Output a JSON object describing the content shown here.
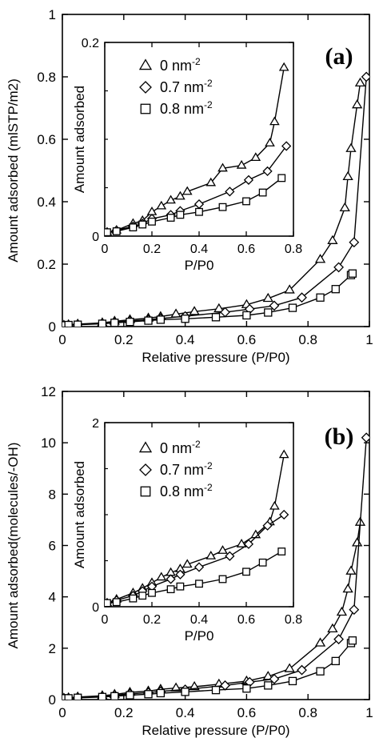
{
  "chart_data": [
    {
      "type": "line",
      "panel_label": "(a)",
      "xlabel": "Relative pressure (P/P0)",
      "ylabel": "Amount adsorbed (mlSTP/m2)",
      "xlim": [
        0,
        1
      ],
      "ylim": [
        0,
        1
      ],
      "xticks": [
        "0",
        "0.2",
        "0.4",
        "0.6",
        "0.8",
        "1"
      ],
      "yticks": [
        "0",
        "0.2",
        "0.4",
        "0.6",
        "0.8",
        "1"
      ],
      "series": [
        {
          "name": "0 nm-2",
          "marker": "triangle",
          "points": [
            [
              0.005,
              0.004
            ],
            [
              0.02,
              0.006
            ],
            [
              0.05,
              0.008
            ],
            [
              0.13,
              0.012
            ],
            [
              0.17,
              0.017
            ],
            [
              0.22,
              0.022
            ],
            [
              0.28,
              0.027
            ],
            [
              0.32,
              0.032
            ],
            [
              0.37,
              0.04
            ],
            [
              0.43,
              0.048
            ],
            [
              0.51,
              0.057
            ],
            [
              0.6,
              0.07
            ],
            [
              0.67,
              0.09
            ],
            [
              0.74,
              0.117
            ],
            [
              0.84,
              0.215
            ],
            [
              0.88,
              0.275
            ],
            [
              0.92,
              0.38
            ],
            [
              0.93,
              0.48
            ],
            [
              0.94,
              0.57
            ],
            [
              0.96,
              0.71
            ],
            [
              0.97,
              0.78
            ]
          ]
        },
        {
          "name": "0.7 nm-2",
          "marker": "diamond",
          "points": [
            [
              0.005,
              0.004
            ],
            [
              0.02,
              0.005
            ],
            [
              0.05,
              0.007
            ],
            [
              0.13,
              0.01
            ],
            [
              0.17,
              0.014
            ],
            [
              0.22,
              0.018
            ],
            [
              0.28,
              0.022
            ],
            [
              0.32,
              0.026
            ],
            [
              0.4,
              0.033
            ],
            [
              0.53,
              0.046
            ],
            [
              0.61,
              0.056
            ],
            [
              0.69,
              0.067
            ],
            [
              0.78,
              0.093
            ],
            [
              0.9,
              0.19
            ],
            [
              0.95,
              0.27
            ],
            [
              0.99,
              0.8
            ]
          ]
        },
        {
          "name": "0.8 nm-2",
          "marker": "square",
          "points": [
            [
              0.005,
              0.004
            ],
            [
              0.02,
              0.005
            ],
            [
              0.05,
              0.006
            ],
            [
              0.13,
              0.009
            ],
            [
              0.17,
              0.012
            ],
            [
              0.22,
              0.015
            ],
            [
              0.28,
              0.019
            ],
            [
              0.32,
              0.022
            ],
            [
              0.4,
              0.025
            ],
            [
              0.5,
              0.03
            ],
            [
              0.6,
              0.036
            ],
            [
              0.67,
              0.045
            ],
            [
              0.75,
              0.06
            ],
            [
              0.84,
              0.093
            ],
            [
              0.89,
              0.12
            ],
            [
              0.94,
              0.165
            ],
            [
              0.945,
              0.17
            ]
          ]
        }
      ],
      "inset": {
        "xlabel": "P/P0",
        "ylabel": "Amount adsorbed",
        "xlim": [
          0,
          0.8
        ],
        "ylim": [
          0,
          0.2
        ],
        "xticks": [
          "0",
          "0.2",
          "0.4",
          "0.6",
          "0.8"
        ],
        "yticks": [
          "0",
          "0.2"
        ],
        "legend": [
          "0 nm-2",
          "0.7 nm-2",
          "0.8 nm-2"
        ],
        "series": [
          {
            "name": "0 nm-2",
            "marker": "triangle",
            "points": [
              [
                0,
                0.003
              ],
              [
                0.01,
                0.004
              ],
              [
                0.05,
                0.006
              ],
              [
                0.12,
                0.013
              ],
              [
                0.16,
                0.016
              ],
              [
                0.2,
                0.025
              ],
              [
                0.24,
                0.031
              ],
              [
                0.28,
                0.037
              ],
              [
                0.32,
                0.041
              ],
              [
                0.35,
                0.046
              ],
              [
                0.45,
                0.055
              ],
              [
                0.5,
                0.07
              ],
              [
                0.58,
                0.073
              ],
              [
                0.64,
                0.081
              ],
              [
                0.7,
                0.096
              ],
              [
                0.72,
                0.118
              ],
              [
                0.76,
                0.174
              ]
            ]
          },
          {
            "name": "0.7 nm-2",
            "marker": "diamond",
            "points": [
              [
                0,
                0.003
              ],
              [
                0.01,
                0.004
              ],
              [
                0.05,
                0.006
              ],
              [
                0.12,
                0.01
              ],
              [
                0.16,
                0.013
              ],
              [
                0.2,
                0.018
              ],
              [
                0.28,
                0.022
              ],
              [
                0.32,
                0.026
              ],
              [
                0.4,
                0.033
              ],
              [
                0.53,
                0.046
              ],
              [
                0.61,
                0.058
              ],
              [
                0.69,
                0.067
              ],
              [
                0.77,
                0.093
              ]
            ]
          },
          {
            "name": "0.8 nm-2",
            "marker": "square",
            "points": [
              [
                0,
                0.003
              ],
              [
                0.01,
                0.004
              ],
              [
                0.05,
                0.005
              ],
              [
                0.12,
                0.009
              ],
              [
                0.16,
                0.012
              ],
              [
                0.2,
                0.015
              ],
              [
                0.28,
                0.019
              ],
              [
                0.32,
                0.022
              ],
              [
                0.4,
                0.025
              ],
              [
                0.5,
                0.03
              ],
              [
                0.6,
                0.036
              ],
              [
                0.67,
                0.045
              ],
              [
                0.75,
                0.06
              ]
            ]
          }
        ]
      }
    },
    {
      "type": "line",
      "panel_label": "(b)",
      "xlabel": "Relative pressure (P/P0)",
      "ylabel": "Amount adsorbed(molecules/-OH)",
      "xlim": [
        0,
        1
      ],
      "ylim": [
        0,
        12
      ],
      "xticks": [
        "0",
        "0.2",
        "0.4",
        "0.6",
        "0.8",
        "1"
      ],
      "yticks": [
        "0",
        "2",
        "4",
        "6",
        "8",
        "10",
        "12"
      ],
      "series": [
        {
          "name": "0 nm-2",
          "marker": "triangle",
          "points": [
            [
              0.005,
              0.05
            ],
            [
              0.02,
              0.07
            ],
            [
              0.05,
              0.1
            ],
            [
              0.13,
              0.15
            ],
            [
              0.17,
              0.2
            ],
            [
              0.22,
              0.28
            ],
            [
              0.28,
              0.33
            ],
            [
              0.32,
              0.4
            ],
            [
              0.37,
              0.45
            ],
            [
              0.43,
              0.5
            ],
            [
              0.51,
              0.6
            ],
            [
              0.6,
              0.72
            ],
            [
              0.67,
              0.9
            ],
            [
              0.74,
              1.2
            ],
            [
              0.84,
              2.2
            ],
            [
              0.88,
              2.75
            ],
            [
              0.91,
              3.4
            ],
            [
              0.93,
              4.3
            ],
            [
              0.94,
              5.0
            ],
            [
              0.96,
              6.1
            ],
            [
              0.97,
              6.9
            ]
          ]
        },
        {
          "name": "0.7 nm-2",
          "marker": "diamond",
          "points": [
            [
              0.005,
              0.05
            ],
            [
              0.02,
              0.06
            ],
            [
              0.05,
              0.08
            ],
            [
              0.13,
              0.12
            ],
            [
              0.17,
              0.17
            ],
            [
              0.22,
              0.22
            ],
            [
              0.28,
              0.27
            ],
            [
              0.32,
              0.32
            ],
            [
              0.4,
              0.39
            ],
            [
              0.53,
              0.55
            ],
            [
              0.61,
              0.68
            ],
            [
              0.69,
              0.8
            ],
            [
              0.78,
              1.15
            ],
            [
              0.9,
              2.35
            ],
            [
              0.95,
              3.5
            ],
            [
              0.99,
              10.2
            ]
          ]
        },
        {
          "name": "0.8 nm-2",
          "marker": "square",
          "points": [
            [
              0.005,
              0.05
            ],
            [
              0.02,
              0.05
            ],
            [
              0.05,
              0.07
            ],
            [
              0.13,
              0.1
            ],
            [
              0.17,
              0.13
            ],
            [
              0.22,
              0.17
            ],
            [
              0.28,
              0.21
            ],
            [
              0.32,
              0.25
            ],
            [
              0.4,
              0.3
            ],
            [
              0.5,
              0.37
            ],
            [
              0.6,
              0.43
            ],
            [
              0.67,
              0.55
            ],
            [
              0.75,
              0.72
            ],
            [
              0.84,
              1.1
            ],
            [
              0.89,
              1.5
            ],
            [
              0.94,
              2.2
            ],
            [
              0.945,
              2.3
            ]
          ]
        }
      ],
      "inset": {
        "xlabel": "P/P0",
        "ylabel": "Amount adsorbed",
        "xlim": [
          0,
          0.8
        ],
        "ylim": [
          0,
          2
        ],
        "xticks": [
          "0",
          "0.2",
          "0.4",
          "0.6",
          "0.8"
        ],
        "yticks": [
          "0",
          "2"
        ],
        "legend": [
          "0 nm-2",
          "0.7 nm-2",
          "0.8 nm-2"
        ],
        "series": [
          {
            "name": "0 nm-2",
            "marker": "triangle",
            "points": [
              [
                0,
                0.03
              ],
              [
                0.01,
                0.04
              ],
              [
                0.05,
                0.08
              ],
              [
                0.12,
                0.15
              ],
              [
                0.16,
                0.2
              ],
              [
                0.2,
                0.26
              ],
              [
                0.24,
                0.32
              ],
              [
                0.28,
                0.37
              ],
              [
                0.32,
                0.41
              ],
              [
                0.35,
                0.46
              ],
              [
                0.45,
                0.55
              ],
              [
                0.5,
                0.61
              ],
              [
                0.58,
                0.68
              ],
              [
                0.64,
                0.78
              ],
              [
                0.7,
                0.92
              ],
              [
                0.72,
                1.09
              ],
              [
                0.76,
                1.65
              ]
            ]
          },
          {
            "name": "0.7 nm-2",
            "marker": "diamond",
            "points": [
              [
                0,
                0.03
              ],
              [
                0.01,
                0.04
              ],
              [
                0.05,
                0.07
              ],
              [
                0.12,
                0.12
              ],
              [
                0.16,
                0.17
              ],
              [
                0.2,
                0.22
              ],
              [
                0.28,
                0.3
              ],
              [
                0.32,
                0.35
              ],
              [
                0.4,
                0.43
              ],
              [
                0.53,
                0.55
              ],
              [
                0.61,
                0.68
              ],
              [
                0.69,
                0.88
              ],
              [
                0.76,
                1.0
              ]
            ]
          },
          {
            "name": "0.8 nm-2",
            "marker": "square",
            "points": [
              [
                0,
                0.03
              ],
              [
                0.01,
                0.04
              ],
              [
                0.05,
                0.05
              ],
              [
                0.12,
                0.09
              ],
              [
                0.16,
                0.12
              ],
              [
                0.2,
                0.15
              ],
              [
                0.28,
                0.19
              ],
              [
                0.32,
                0.22
              ],
              [
                0.4,
                0.25
              ],
              [
                0.5,
                0.3
              ],
              [
                0.6,
                0.38
              ],
              [
                0.67,
                0.48
              ],
              [
                0.75,
                0.6
              ]
            ]
          }
        ]
      }
    }
  ]
}
